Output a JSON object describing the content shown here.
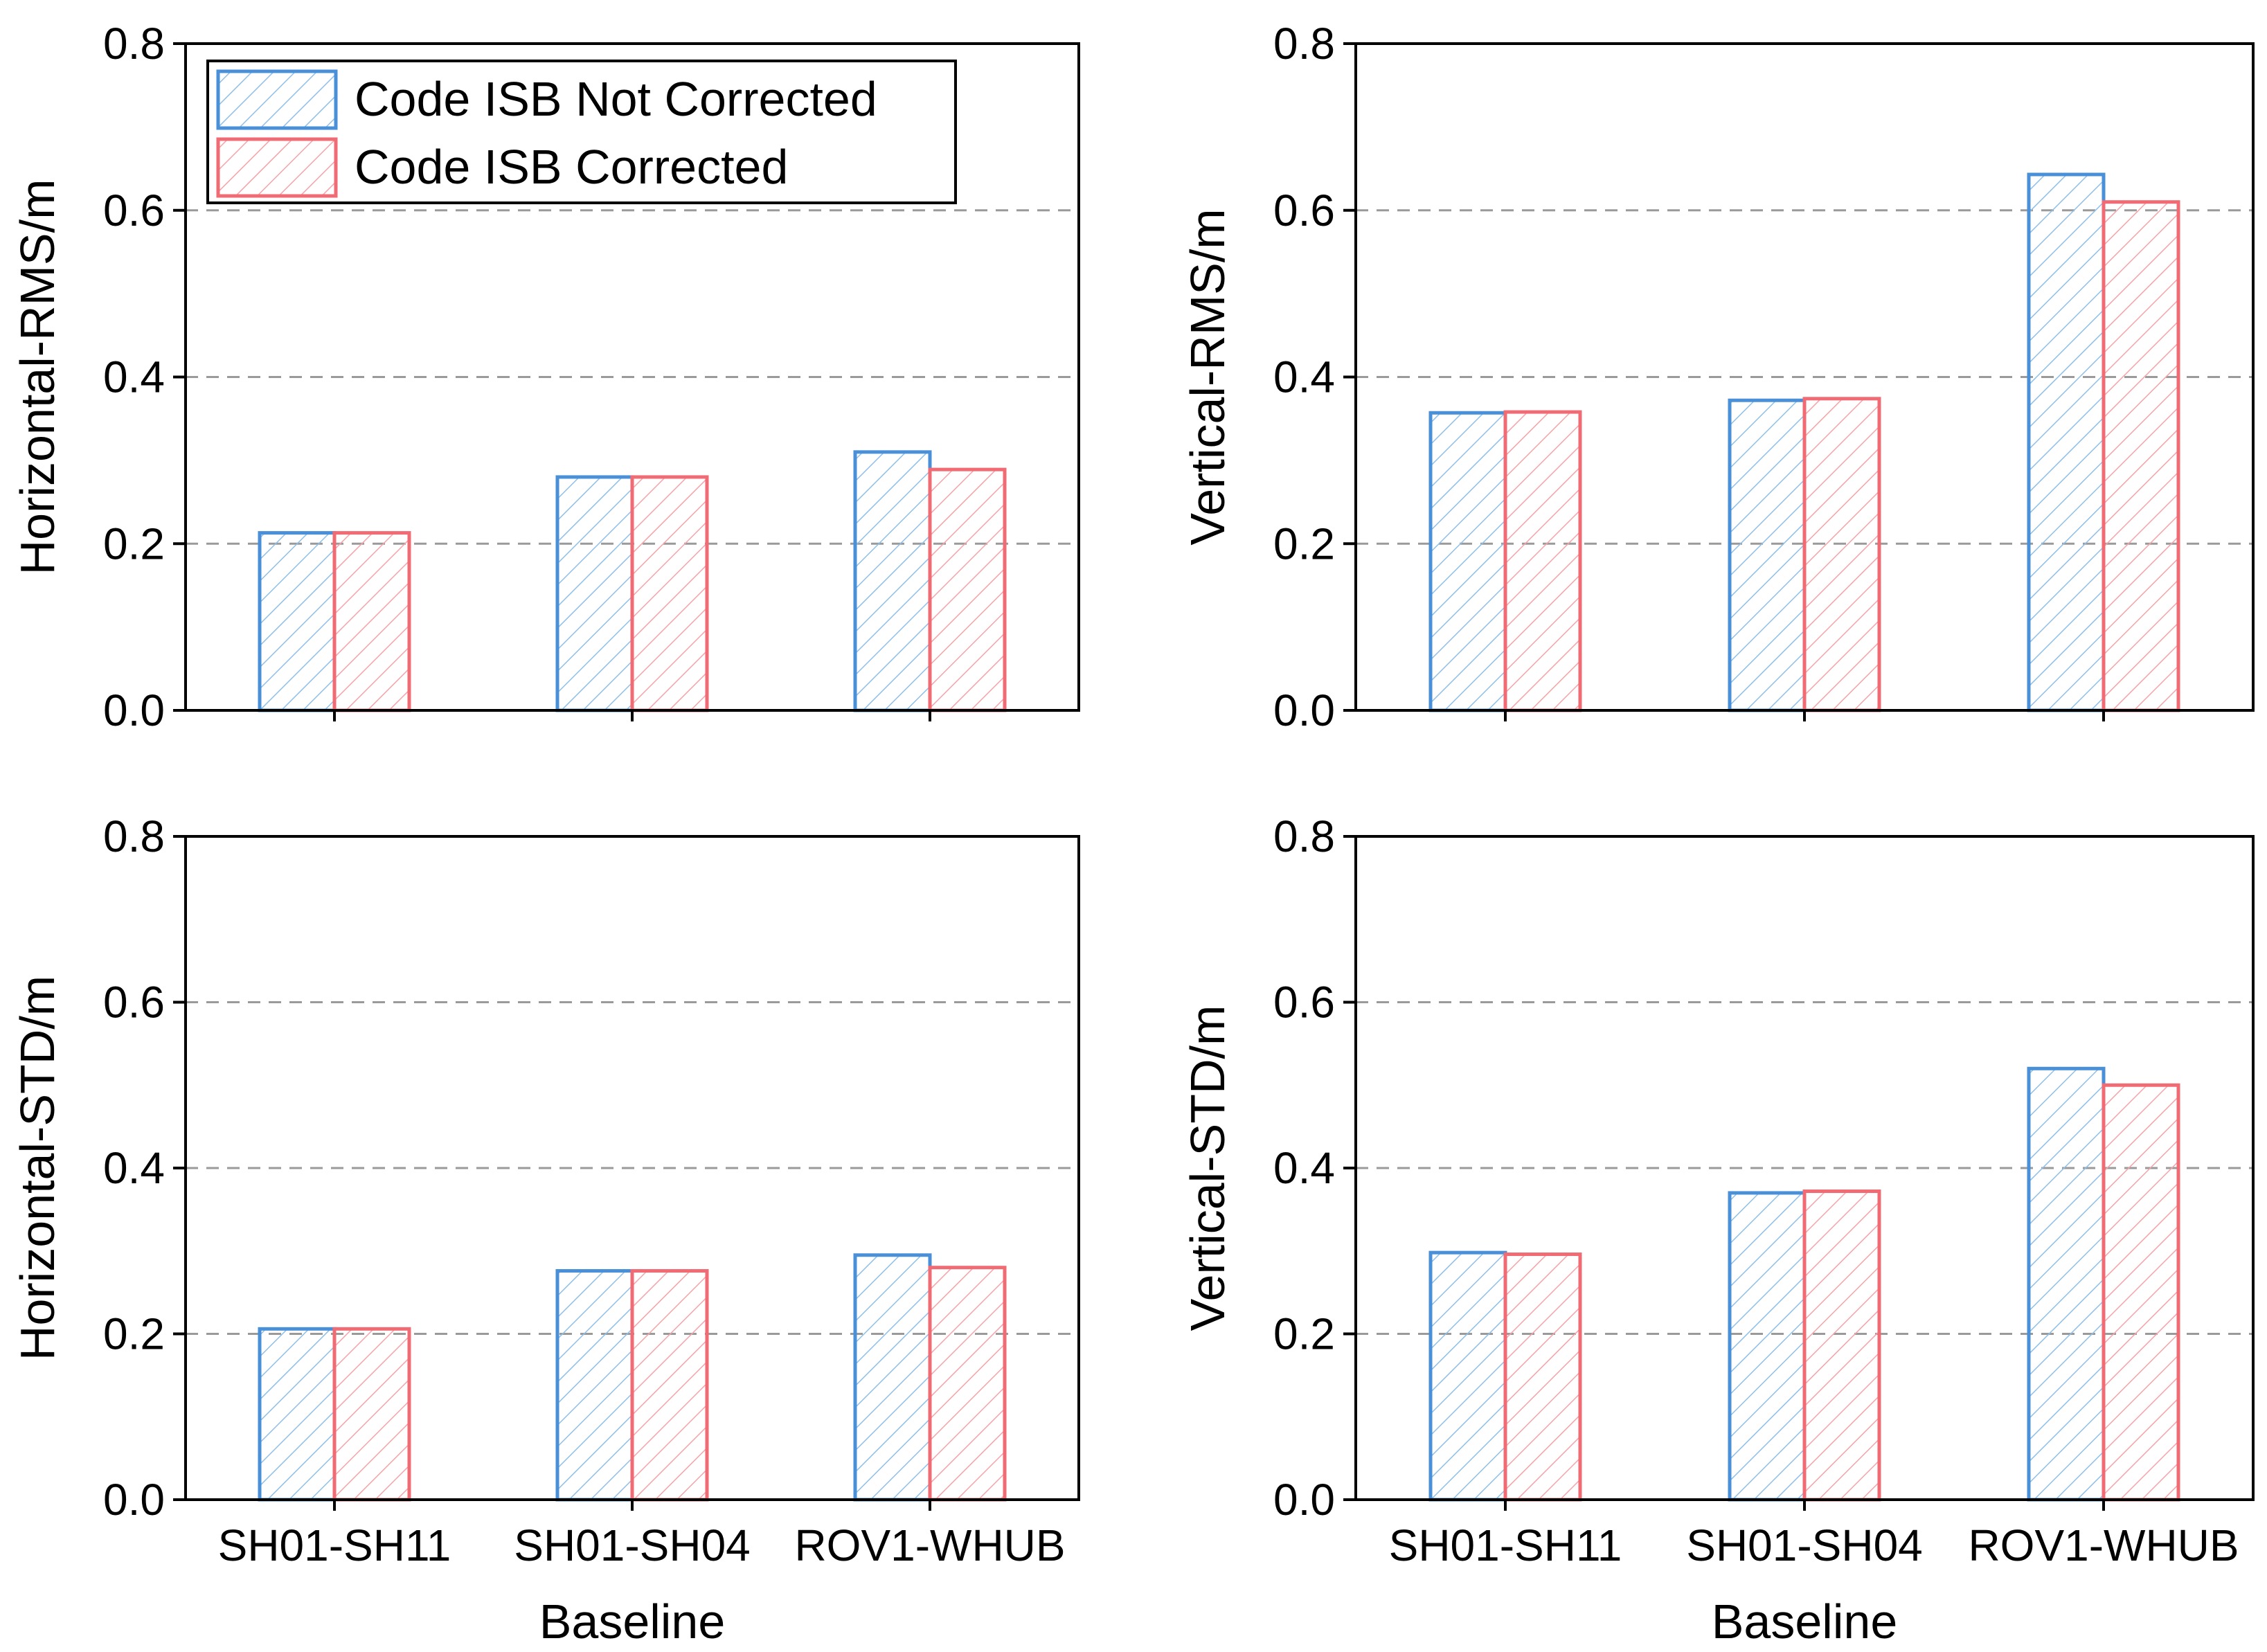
{
  "legend": {
    "entries": [
      "Code ISB Not Corrected",
      "Code ISB Corrected"
    ],
    "placement": "top-left of first panel"
  },
  "colors": {
    "series_1": "#4a90d9",
    "series_2": "#f06b73",
    "grid": "#9a9a9a",
    "axis": "#000000"
  },
  "chart_data": [
    {
      "type": "bar",
      "panel": "top-left",
      "title": "",
      "xlabel": "",
      "ylabel": "Horizontal-RMS/m",
      "ylim": [
        0,
        0.8
      ],
      "yticks": [
        "0.0",
        "0.2",
        "0.4",
        "0.6",
        "0.8"
      ],
      "grid": "dashed horizontal",
      "categories": [
        "SH01-SH11",
        "SH01-SH04",
        "ROV1-WHUB"
      ],
      "show_category_labels": false,
      "series": [
        {
          "name": "Code ISB Not Corrected",
          "values": [
            0.213,
            0.28,
            0.31
          ]
        },
        {
          "name": "Code ISB Corrected",
          "values": [
            0.213,
            0.28,
            0.289
          ]
        }
      ]
    },
    {
      "type": "bar",
      "panel": "top-right",
      "title": "",
      "xlabel": "",
      "ylabel": "Vertical-RMS/m",
      "ylim": [
        0,
        0.8
      ],
      "yticks": [
        "0.0",
        "0.2",
        "0.4",
        "0.6",
        "0.8"
      ],
      "grid": "dashed horizontal",
      "categories": [
        "SH01-SH11",
        "SH01-SH04",
        "ROV1-WHUB"
      ],
      "show_category_labels": false,
      "series": [
        {
          "name": "Code ISB Not Corrected",
          "values": [
            0.357,
            0.372,
            0.643
          ]
        },
        {
          "name": "Code ISB Corrected",
          "values": [
            0.358,
            0.374,
            0.61
          ]
        }
      ]
    },
    {
      "type": "bar",
      "panel": "bottom-left",
      "title": "",
      "xlabel": "Baseline",
      "ylabel": "Horizontal-STD/m",
      "ylim": [
        0,
        0.8
      ],
      "yticks": [
        "0.0",
        "0.2",
        "0.4",
        "0.6",
        "0.8"
      ],
      "grid": "dashed horizontal",
      "categories": [
        "SH01-SH11",
        "SH01-SH04",
        "ROV1-WHUB"
      ],
      "show_category_labels": true,
      "series": [
        {
          "name": "Code ISB Not Corrected",
          "values": [
            0.206,
            0.276,
            0.295
          ]
        },
        {
          "name": "Code ISB Corrected",
          "values": [
            0.206,
            0.276,
            0.28
          ]
        }
      ]
    },
    {
      "type": "bar",
      "panel": "bottom-right",
      "title": "",
      "xlabel": "Baseline",
      "ylabel": "Vertical-STD/m",
      "ylim": [
        0,
        0.8
      ],
      "yticks": [
        "0.0",
        "0.2",
        "0.4",
        "0.6",
        "0.8"
      ],
      "grid": "dashed horizontal",
      "categories": [
        "SH01-SH11",
        "SH01-SH04",
        "ROV1-WHUB"
      ],
      "show_category_labels": true,
      "series": [
        {
          "name": "Code ISB Not Corrected",
          "values": [
            0.298,
            0.37,
            0.52
          ]
        },
        {
          "name": "Code ISB Corrected",
          "values": [
            0.296,
            0.372,
            0.5
          ]
        }
      ]
    }
  ]
}
